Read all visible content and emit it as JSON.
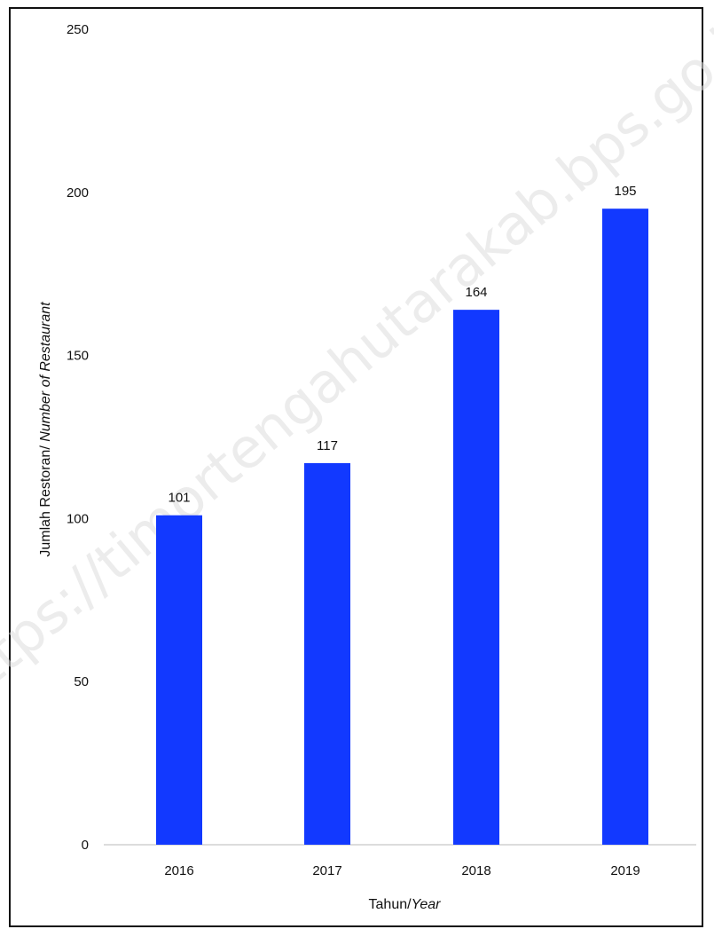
{
  "watermark": "https://timortengahutarakab.bps.go.id",
  "chart_data": {
    "type": "bar",
    "categories": [
      "2016",
      "2017",
      "2018",
      "2019"
    ],
    "values": [
      101,
      117,
      164,
      195
    ],
    "data_labels": [
      "101",
      "117",
      "164",
      "195"
    ],
    "ylim": [
      0,
      250
    ],
    "yticks": [
      "0",
      "50",
      "100",
      "150",
      "200",
      "250"
    ],
    "xlabel": {
      "main": "Tahun/",
      "italic": "Year"
    },
    "ylabel": {
      "main": "Jumlah Restoran/ ",
      "italic": "Number of Restaurant"
    },
    "bar_color": "#1239ff",
    "grid": false
  }
}
